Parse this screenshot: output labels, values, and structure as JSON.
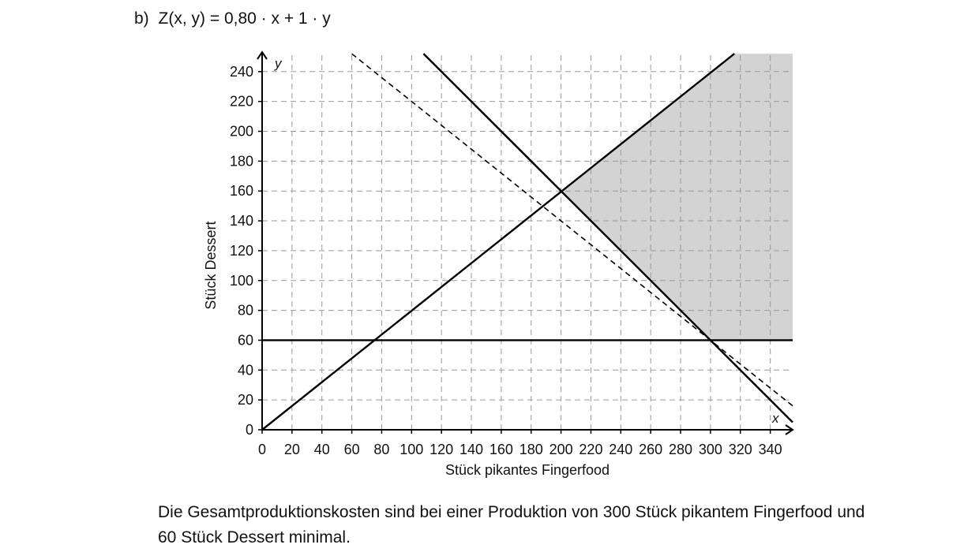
{
  "task": {
    "label": "b)",
    "formula": "Z(x, y) = 0,80 · x + 1 · y"
  },
  "conclusion": "Die Gesamtproduktionskosten sind bei einer Produktion von 300 Stück pikantem Finger­food und 60 Stück Dessert minimal.",
  "chart_data": {
    "type": "line",
    "xlabel": "Stück pikantes Fingerfood",
    "ylabel": "Stück Dessert",
    "x_axis_symbol": "x",
    "y_axis_symbol": "y",
    "xlim": [
      0,
      355
    ],
    "ylim": [
      0,
      252
    ],
    "xticks": [
      0,
      20,
      40,
      60,
      80,
      100,
      120,
      140,
      160,
      180,
      200,
      220,
      240,
      260,
      280,
      300,
      320,
      340
    ],
    "yticks": [
      0,
      20,
      40,
      60,
      80,
      100,
      120,
      140,
      160,
      180,
      200,
      220,
      240
    ],
    "grid": true,
    "grid_style": "dashed",
    "series": [
      {
        "style": "solid",
        "points": [
          [
            0,
            0
          ],
          [
            316,
            252
          ]
        ]
      },
      {
        "style": "solid",
        "points": [
          [
            108,
            252
          ],
          [
            355,
            5
          ]
        ]
      },
      {
        "style": "solid",
        "points": [
          [
            0,
            60
          ],
          [
            355,
            60
          ]
        ]
      },
      {
        "style": "dashed",
        "points": [
          [
            60,
            252
          ],
          [
            355,
            16
          ]
        ]
      }
    ],
    "feasible_region": {
      "fill": "#d3d3d3",
      "points": [
        [
          200,
          160
        ],
        [
          316,
          252
        ],
        [
          355,
          252
        ],
        [
          355,
          60
        ],
        [
          300,
          60
        ]
      ]
    }
  }
}
